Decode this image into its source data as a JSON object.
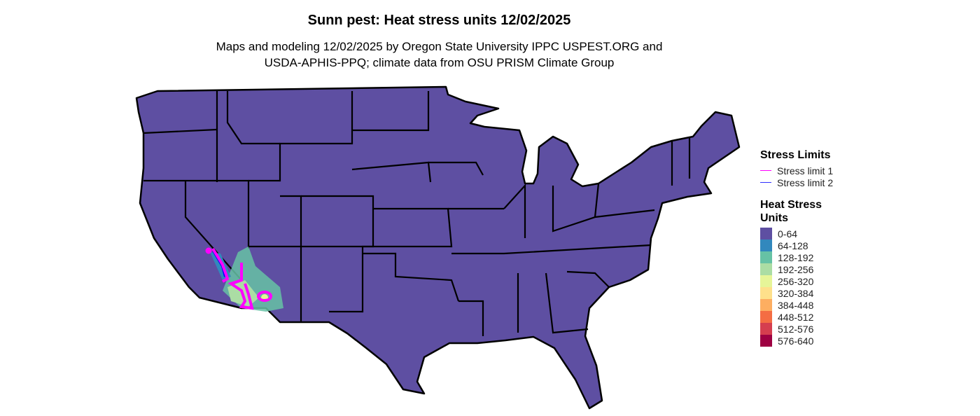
{
  "title": "Sunn pest: Heat stress units 12/02/2025",
  "subtitle_lines": [
    "Maps and modeling 12/02/2025 by Oregon State University IPPC USPEST.ORG and",
    "USDA-APHIS-PPQ; climate data from OSU PRISM Climate Group"
  ],
  "legend": {
    "stress_limits_title": "Stress Limits",
    "stress_limits": [
      {
        "label": "Stress limit 1",
        "color": "#ff00ff"
      },
      {
        "label": "Stress limit 2",
        "color": "#0000ff"
      }
    ],
    "heat_title": "Heat Stress Units",
    "bins": [
      {
        "label": "0-64",
        "color": "#5e4fa2"
      },
      {
        "label": "64-128",
        "color": "#3288bd"
      },
      {
        "label": "128-192",
        "color": "#66c2a5"
      },
      {
        "label": "192-256",
        "color": "#abdda4"
      },
      {
        "label": "256-320",
        "color": "#e6f598"
      },
      {
        "label": "320-384",
        "color": "#fee08b"
      },
      {
        "label": "384-448",
        "color": "#fdae61"
      },
      {
        "label": "448-512",
        "color": "#f46d43"
      },
      {
        "label": "512-576",
        "color": "#d53e4f"
      },
      {
        "label": "576-640",
        "color": "#9e0142"
      }
    ]
  },
  "map": {
    "region": "Contiguous United States",
    "base_fill": "#5e4fa2",
    "border_color": "#000000"
  }
}
